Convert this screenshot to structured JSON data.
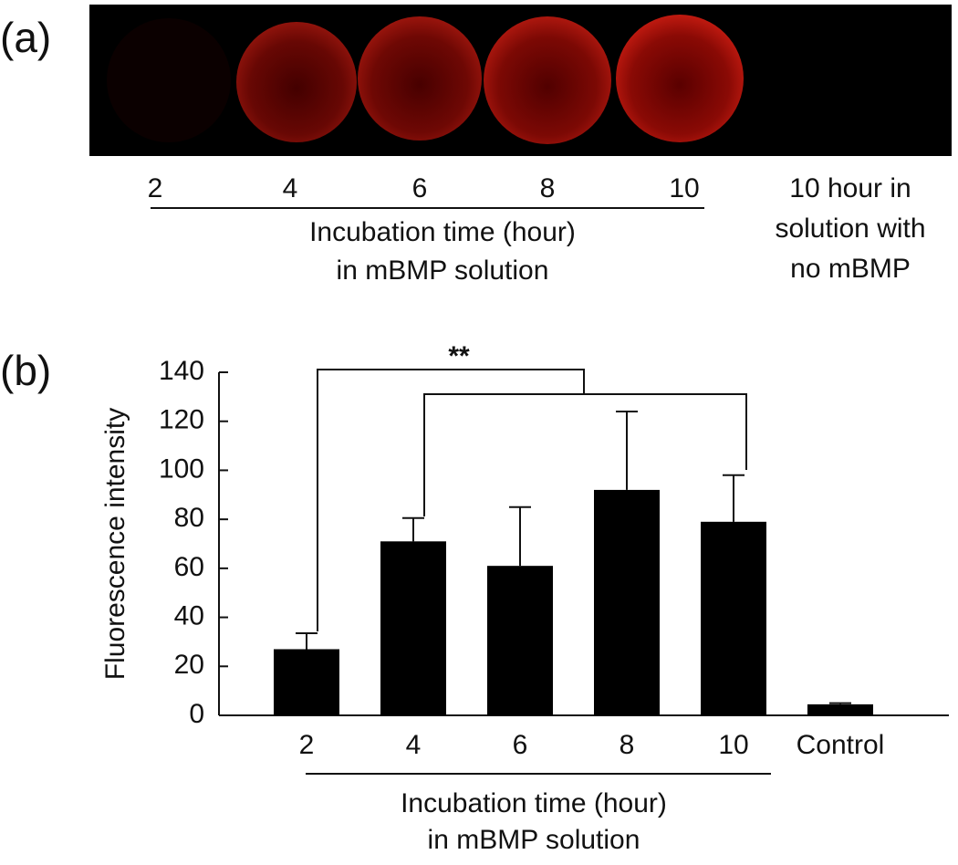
{
  "panel_a": {
    "label": "(a)",
    "times": [
      "2",
      "4",
      "6",
      "8",
      "10"
    ],
    "group_label": [
      "Incubation time (hour)",
      "in mBMP solution"
    ],
    "control_label": [
      "10 hour in",
      "solution with",
      "no mBMP"
    ]
  },
  "chart_data": {
    "type": "bar",
    "panel_label": "(b)",
    "y_label": "Fluorescence intensity",
    "categories": [
      "2",
      "4",
      "6",
      "8",
      "10",
      "Control"
    ],
    "values": [
      27,
      71,
      61,
      92,
      79,
      4.5
    ],
    "errors": [
      6.5,
      9.5,
      24,
      32,
      19,
      0.5
    ],
    "color": "#000000",
    "ylim": [
      0,
      140
    ],
    "yticks": [
      0,
      20,
      40,
      60,
      80,
      100,
      120,
      140
    ],
    "group_label": [
      "Incubation time (hour)",
      "in mBMP solution"
    ],
    "significance": "**"
  }
}
